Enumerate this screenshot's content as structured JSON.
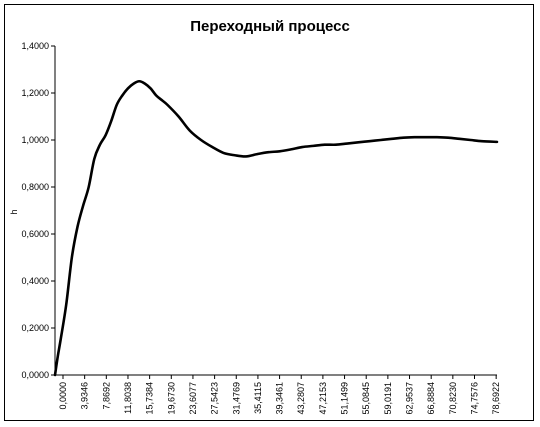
{
  "chart_data": {
    "type": "line",
    "title": "Переходный процесс",
    "xlabel": "",
    "ylabel": "h",
    "ylim": [
      0,
      1.4
    ],
    "y_ticks": [
      "0,0000",
      "0,2000",
      "0,4000",
      "0,6000",
      "0,8000",
      "1,0000",
      "1,2000",
      "1,4000"
    ],
    "y_tick_values": [
      0,
      0.2,
      0.4,
      0.6,
      0.8,
      1.0,
      1.2,
      1.4
    ],
    "x_ticks": [
      "0,0000",
      "3,9346",
      "7,8692",
      "11,8038",
      "15,7384",
      "19,6730",
      "23,6077",
      "27,5423",
      "31,4769",
      "35,4115",
      "39,3461",
      "43,2807",
      "47,2153",
      "51,1499",
      "55,0845",
      "59,0191",
      "62,9537",
      "66,8884",
      "70,8230",
      "74,7576",
      "78,6922"
    ],
    "xlim": [
      0,
      78.6922
    ],
    "grid": false,
    "line_color": "#000000",
    "series": [
      {
        "x": [
          0,
          0.5,
          1.0,
          2.0,
          3.0,
          4.0,
          5.0,
          6.0,
          7.0,
          8.0,
          9.0,
          10.0,
          11.0,
          12.0,
          13.0,
          14.0,
          15.0,
          16.0,
          17.0,
          18.0,
          19.0,
          20.0,
          22.0,
          24.0,
          26.0,
          28.0,
          30.0,
          32.0,
          34.0,
          36.0,
          38.0,
          40.0,
          42.0,
          44.0,
          46.0,
          48.0,
          50.0,
          52.0,
          54.0,
          56.0,
          58.0,
          60.0,
          62.0,
          64.0,
          66.0,
          68.0,
          70.0,
          72.0,
          74.0,
          76.0,
          78.6922
        ],
        "y": [
          0,
          0.08,
          0.15,
          0.3,
          0.5,
          0.63,
          0.72,
          0.8,
          0.92,
          0.98,
          1.02,
          1.08,
          1.15,
          1.19,
          1.22,
          1.24,
          1.25,
          1.24,
          1.22,
          1.19,
          1.17,
          1.15,
          1.1,
          1.04,
          1.0,
          0.97,
          0.945,
          0.935,
          0.93,
          0.94,
          0.948,
          0.952,
          0.96,
          0.97,
          0.975,
          0.98,
          0.98,
          0.985,
          0.99,
          0.995,
          1.0,
          1.005,
          1.01,
          1.012,
          1.012,
          1.012,
          1.01,
          1.005,
          1.0,
          0.995,
          0.992
        ]
      }
    ]
  }
}
